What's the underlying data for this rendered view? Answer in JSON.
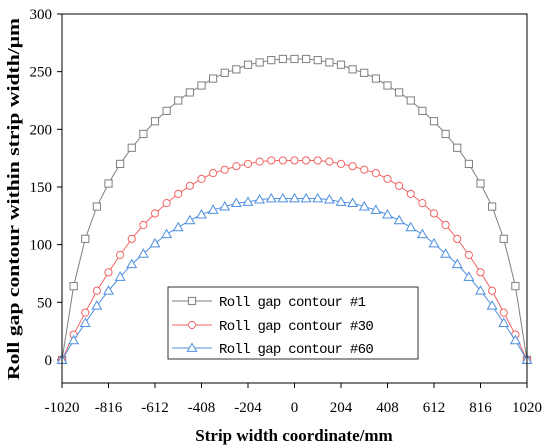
{
  "chart_data": {
    "type": "line",
    "xlabel": "Strip width coordinate/mm",
    "ylabel": "Roll gap contour within strip width/μm",
    "xlim": [
      -1020,
      1020
    ],
    "ylim": [
      -20,
      300
    ],
    "xticks": [
      -1020,
      -816,
      -612,
      -408,
      -204,
      0,
      204,
      408,
      612,
      816,
      1020
    ],
    "yticks": [
      0,
      50,
      100,
      150,
      200,
      250,
      300
    ],
    "grid": false,
    "legend": "bottom-center",
    "x": [
      -1020,
      -969,
      -918,
      -867,
      -816,
      -765,
      -714,
      -663,
      -612,
      -561,
      -510,
      -459,
      -408,
      -357,
      -306,
      -255,
      -204,
      -153,
      -102,
      -51,
      0,
      51,
      102,
      153,
      204,
      255,
      306,
      357,
      408,
      459,
      510,
      561,
      612,
      663,
      714,
      765,
      816,
      867,
      918,
      969,
      1020
    ],
    "series": [
      {
        "name": "Roll gap contour #1",
        "color": "#7f7f7f",
        "marker": "square",
        "values": [
          0,
          64,
          105,
          133,
          153,
          170,
          184,
          196,
          207,
          216,
          225,
          232,
          238,
          244,
          249,
          252,
          256,
          258,
          260,
          261,
          261,
          261,
          260,
          258,
          256,
          252,
          249,
          244,
          238,
          232,
          225,
          216,
          207,
          196,
          184,
          170,
          153,
          133,
          105,
          64,
          0
        ]
      },
      {
        "name": "Roll gap contour #30",
        "color": "#f26464",
        "marker": "circle",
        "values": [
          0,
          22,
          41,
          60,
          76,
          91,
          105,
          117,
          127,
          136,
          144,
          151,
          157,
          162,
          165,
          168,
          170,
          172,
          173,
          173,
          173,
          173,
          173,
          172,
          170,
          168,
          165,
          162,
          157,
          151,
          144,
          136,
          127,
          117,
          105,
          91,
          76,
          60,
          41,
          22,
          0
        ]
      },
      {
        "name": "Roll gap contour #60",
        "color": "#4d8fe0",
        "marker": "triangle",
        "values": [
          0,
          17,
          32,
          47,
          60,
          72,
          83,
          92,
          101,
          109,
          115,
          121,
          126,
          130,
          133,
          136,
          137,
          139,
          140,
          140,
          140,
          140,
          140,
          139,
          137,
          136,
          133,
          130,
          126,
          121,
          115,
          109,
          101,
          92,
          83,
          72,
          60,
          47,
          32,
          17,
          0
        ]
      }
    ]
  }
}
